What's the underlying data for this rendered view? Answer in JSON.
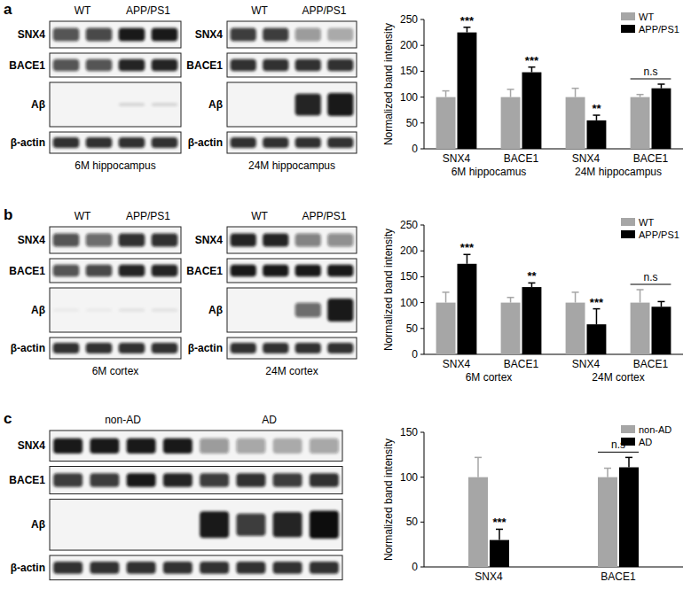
{
  "panels": [
    {
      "letter": "a",
      "blots": [
        {
          "caption": "6M hippocampus",
          "columns": [
            "WT",
            "APP/PS1"
          ],
          "rows": [
            "SNX4",
            "BACE1",
            "Aβ",
            "β-actin"
          ]
        },
        {
          "caption": "24M hippocampus",
          "columns": [
            "WT",
            "APP/PS1"
          ],
          "rows": [
            "SNX4",
            "BACE1",
            "Aβ",
            "β-actin"
          ]
        }
      ]
    },
    {
      "letter": "b",
      "blots": [
        {
          "caption": "6M cortex",
          "columns": [
            "WT",
            "APP/PS1"
          ],
          "rows": [
            "SNX4",
            "BACE1",
            "Aβ",
            "β-actin"
          ]
        },
        {
          "caption": "24M cortex",
          "columns": [
            "WT",
            "APP/PS1"
          ],
          "rows": [
            "SNX4",
            "BACE1",
            "Aβ",
            "β-actin"
          ]
        }
      ]
    },
    {
      "letter": "c",
      "blots": [
        {
          "columns": [
            "non-AD",
            "AD"
          ],
          "rows": [
            "SNX4",
            "BACE1",
            "Aβ",
            "β-actin"
          ]
        }
      ]
    }
  ],
  "chart_data": [
    {
      "type": "bar",
      "y_label": "Normalized band intensity",
      "categories": [
        "SNX4",
        "BACE1",
        "SNX4",
        "BACE1"
      ],
      "category_groups": [
        "6M hippocamus",
        "24M hippocampus"
      ],
      "ylim": [
        0,
        250
      ],
      "yticks": [
        0,
        50,
        100,
        150,
        200,
        250
      ],
      "legend": "upper right",
      "series": [
        {
          "name": "WT",
          "color": "#a6a6a6",
          "values": [
            100,
            100,
            100,
            100
          ],
          "errors": [
            12,
            15,
            17,
            5
          ]
        },
        {
          "name": "APP/PS1",
          "color": "#000000",
          "values": [
            225,
            148,
            55,
            117
          ],
          "errors": [
            10,
            10,
            10,
            8
          ]
        }
      ],
      "annotations": [
        {
          "text": "***",
          "category": 0,
          "series": 1
        },
        {
          "text": "***",
          "category": 1,
          "series": 1
        },
        {
          "text": "**",
          "category": 2,
          "series": 1
        },
        {
          "text": "n.s",
          "category": 3
        }
      ]
    },
    {
      "type": "bar",
      "y_label": "Normalized band intensity",
      "categories": [
        "SNX4",
        "BACE1",
        "SNX4",
        "BACE1"
      ],
      "category_groups": [
        "6M cortex",
        "24M cortex"
      ],
      "ylim": [
        0,
        250
      ],
      "yticks": [
        0,
        50,
        100,
        150,
        200,
        250
      ],
      "legend": "upper right",
      "series": [
        {
          "name": "WT",
          "color": "#a6a6a6",
          "values": [
            100,
            100,
            100,
            100
          ],
          "errors": [
            20,
            10,
            20,
            25
          ]
        },
        {
          "name": "APP/PS1",
          "color": "#000000",
          "values": [
            175,
            130,
            58,
            92
          ],
          "errors": [
            18,
            8,
            30,
            10
          ]
        }
      ],
      "annotations": [
        {
          "text": "***",
          "category": 0,
          "series": 1
        },
        {
          "text": "**",
          "category": 1,
          "series": 1
        },
        {
          "text": "***",
          "category": 2,
          "series": 1
        },
        {
          "text": "n.s",
          "category": 3
        }
      ]
    },
    {
      "type": "bar",
      "y_label": "Normalized band intensity",
      "categories": [
        "SNX4",
        "BACE1"
      ],
      "ylim": [
        0,
        150
      ],
      "yticks": [
        0,
        50,
        100,
        150
      ],
      "legend": "upper right",
      "series": [
        {
          "name": "non-AD",
          "color": "#a6a6a6",
          "values": [
            100,
            100
          ],
          "errors": [
            22,
            10
          ]
        },
        {
          "name": "AD",
          "color": "#000000",
          "values": [
            30,
            111
          ],
          "errors": [
            12,
            11
          ]
        }
      ],
      "annotations": [
        {
          "text": "***",
          "category": 0,
          "series": 1
        },
        {
          "text": "n.s",
          "category": 1
        }
      ]
    }
  ]
}
